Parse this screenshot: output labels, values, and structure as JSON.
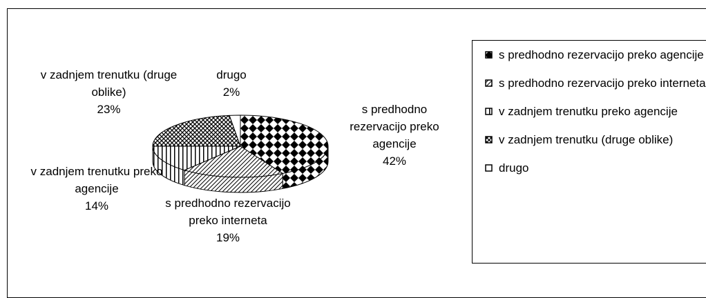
{
  "chart_data": {
    "type": "pie",
    "categories": [
      "s predhodno rezervacijo preko agencije",
      "s predhodno rezervacijo preko interneta",
      "v zadnjem trenutku preko agencije",
      "v zadnjem trenutku (druge oblike)",
      "drugo"
    ],
    "values": [
      42,
      19,
      14,
      23,
      2
    ],
    "value_labels": [
      "42%",
      "19%",
      "14%",
      "23%",
      "2%"
    ],
    "legend": "right"
  }
}
